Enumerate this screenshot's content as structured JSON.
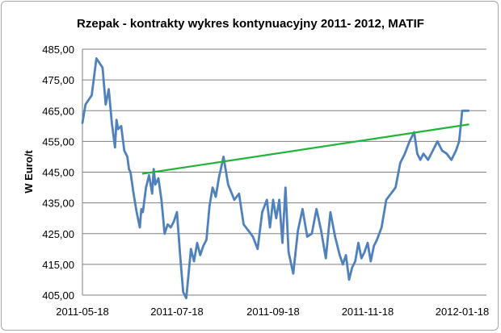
{
  "chart_data": {
    "type": "line",
    "title": "Rzepak - kontrakty wykres kontynuacyjny 2011- 2012,  MATIF",
    "ylabel": "W Euro/t",
    "xlabel": "",
    "ylim": [
      405,
      485
    ],
    "y_ticks": [
      "485,00",
      "475,00",
      "465,00",
      "455,00",
      "445,00",
      "435,00",
      "425,00",
      "415,00",
      "405,00"
    ],
    "y_tick_values": [
      485,
      475,
      465,
      455,
      445,
      435,
      425,
      415,
      405
    ],
    "x_ticks": [
      "2011-05-18",
      "2011-07-18",
      "2011-09-18",
      "2011-11-18",
      "2012-01-18"
    ],
    "x_range": [
      "2011-05-18",
      "2012-01-18"
    ],
    "grid": "horizontal",
    "colors": {
      "price": "#4f81bd",
      "trend": "#22b33a",
      "grid": "#808080"
    },
    "series": [
      {
        "role": "price",
        "x": [
          "2011-05-18",
          "2011-05-20",
          "2011-05-24",
          "2011-05-27",
          "2011-05-31",
          "2011-06-02",
          "2011-06-04",
          "2011-06-06",
          "2011-06-08",
          "2011-06-09",
          "2011-06-10",
          "2011-06-12",
          "2011-06-14",
          "2011-06-16",
          "2011-06-17",
          "2011-06-18",
          "2011-06-20",
          "2011-06-22",
          "2011-06-24",
          "2011-06-25",
          "2011-06-26",
          "2011-06-28",
          "2011-06-30",
          "2011-07-02",
          "2011-07-03",
          "2011-07-04",
          "2011-07-06",
          "2011-07-08",
          "2011-07-10",
          "2011-07-12",
          "2011-07-14",
          "2011-07-16",
          "2011-07-18",
          "2011-07-20",
          "2011-07-22",
          "2011-07-24",
          "2011-07-27",
          "2011-07-29",
          "2011-07-31",
          "2011-08-02",
          "2011-08-04",
          "2011-08-06",
          "2011-08-08",
          "2011-08-10",
          "2011-08-12",
          "2011-08-14",
          "2011-08-17",
          "2011-08-20",
          "2011-08-24",
          "2011-08-27",
          "2011-08-30",
          "2011-09-02",
          "2011-09-05",
          "2011-09-08",
          "2011-09-11",
          "2011-09-14",
          "2011-09-16",
          "2011-09-18",
          "2011-09-20",
          "2011-09-22",
          "2011-09-24",
          "2011-09-26",
          "2011-09-28",
          "2011-10-01",
          "2011-10-04",
          "2011-10-07",
          "2011-10-10",
          "2011-10-13",
          "2011-10-16",
          "2011-10-19",
          "2011-10-22",
          "2011-10-25",
          "2011-10-28",
          "2011-10-31",
          "2011-11-02",
          "2011-11-04",
          "2011-11-06",
          "2011-11-08",
          "2011-11-10",
          "2011-11-12",
          "2011-11-14",
          "2011-11-16",
          "2011-11-18",
          "2011-11-20",
          "2011-11-22",
          "2011-11-24",
          "2011-11-27",
          "2011-11-30",
          "2011-12-03",
          "2011-12-06",
          "2011-12-09",
          "2011-12-12",
          "2011-12-15",
          "2011-12-18",
          "2011-12-20",
          "2011-12-22",
          "2011-12-24",
          "2011-12-27",
          "2011-12-30",
          "2012-01-02",
          "2012-01-05",
          "2012-01-08",
          "2012-01-11",
          "2012-01-14",
          "2012-01-16",
          "2012-01-18",
          "2012-01-20",
          "2012-01-22"
        ],
        "values": [
          461,
          467,
          470,
          482,
          479,
          467,
          472,
          461,
          453,
          462,
          459,
          460,
          452,
          450,
          446,
          445,
          438,
          432,
          427,
          433,
          432,
          440,
          444,
          438,
          446,
          441,
          443,
          436,
          425,
          428,
          427,
          429,
          432,
          418,
          406,
          404,
          420,
          416,
          422,
          418,
          421,
          423,
          434,
          440,
          437,
          443,
          450,
          441,
          436,
          438,
          428,
          426,
          424,
          420,
          432,
          436,
          427,
          436,
          430,
          436,
          422,
          440,
          419,
          412,
          426,
          433,
          424,
          425,
          433,
          426,
          417,
          432,
          424,
          418,
          415,
          418,
          410,
          414,
          416,
          422,
          417,
          419,
          422,
          416,
          421,
          423,
          427,
          436,
          438,
          440,
          448,
          451,
          455,
          458,
          451,
          449,
          451,
          449,
          452,
          455,
          452,
          451,
          449,
          452,
          455,
          465,
          465,
          465
        ]
      },
      {
        "role": "trend",
        "x": [
          "2011-06-26",
          "2012-01-22"
        ],
        "values": [
          444.5,
          460.5
        ]
      }
    ]
  }
}
